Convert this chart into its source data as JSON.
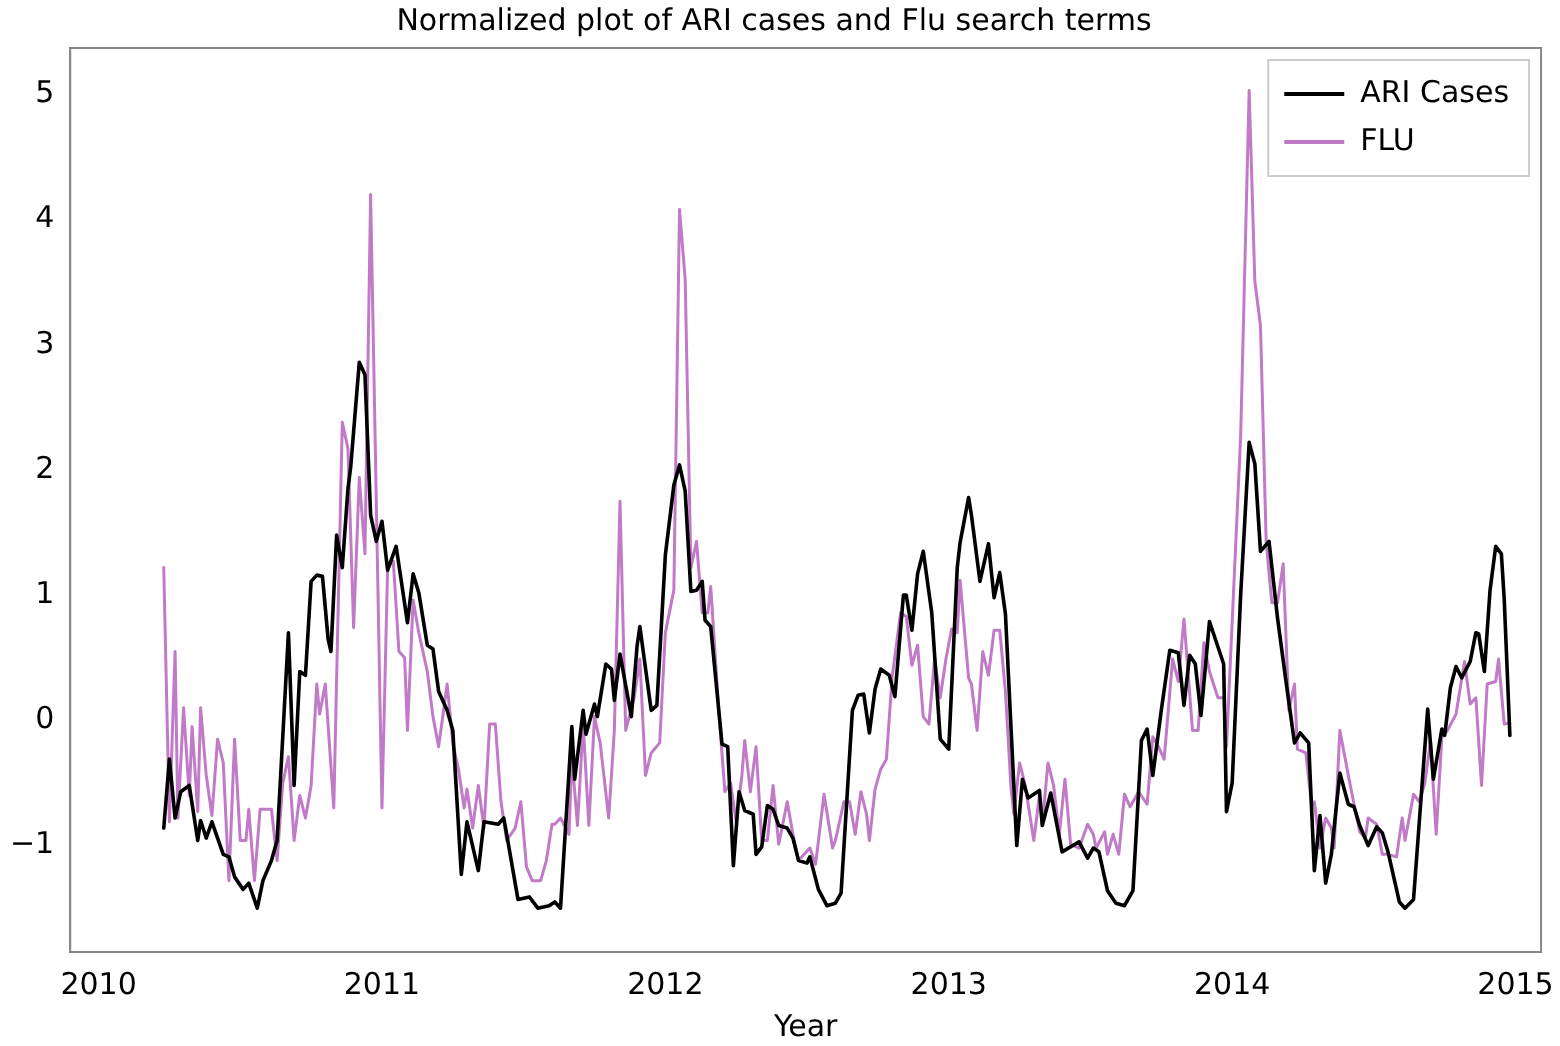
{
  "chart_data": {
    "type": "line",
    "title": "Normalized plot of ARI cases and Flu search terms",
    "xlabel": "Year",
    "xlim": [
      2009.9,
      2015.09
    ],
    "xticks": [
      2010,
      2011,
      2012,
      2013,
      2014,
      2015
    ],
    "ylim": [
      -1.85,
      5.37
    ],
    "yticks": [
      -1,
      0,
      1,
      2,
      3,
      4,
      5
    ],
    "grid": false,
    "legend": "top right",
    "marker": "none",
    "line_style": "solid",
    "series": [
      {
        "name": "ARI Cases",
        "color": "#000000",
        "x": [
          2010.23,
          2010.25,
          2010.27,
          2010.29,
          2010.32,
          2010.35,
          2010.36,
          2010.38,
          2010.4,
          2010.44,
          2010.46,
          2010.48,
          2010.51,
          2010.53,
          2010.56,
          2010.58,
          2010.61,
          2010.63,
          2010.67,
          2010.69,
          2010.71,
          2010.73,
          2010.75,
          2010.77,
          2010.79,
          2010.81,
          2010.82,
          2010.84,
          2010.86,
          2010.88,
          2010.89,
          2010.92,
          2010.94,
          2010.96,
          2010.98,
          2011.0,
          2011.02,
          2011.05,
          2011.09,
          2011.11,
          2011.13,
          2011.16,
          2011.18,
          2011.2,
          2011.23,
          2011.25,
          2011.28,
          2011.3,
          2011.34,
          2011.36,
          2011.41,
          2011.43,
          2011.48,
          2011.52,
          2011.55,
          2011.59,
          2011.61,
          2011.63,
          2011.67,
          2011.68,
          2011.71,
          2011.72,
          2011.75,
          2011.76,
          2011.79,
          2011.81,
          2011.82,
          2011.84,
          2011.88,
          2011.9,
          2011.91,
          2011.95,
          2011.97,
          2012.0,
          2012.03,
          2012.05,
          2012.07,
          2012.09,
          2012.11,
          2012.13,
          2012.14,
          2012.16,
          2012.2,
          2012.22,
          2012.24,
          2012.26,
          2012.28,
          2012.31,
          2012.32,
          2012.34,
          2012.36,
          2012.38,
          2012.4,
          2012.43,
          2012.45,
          2012.47,
          2012.5,
          2012.51,
          2012.54,
          2012.57,
          2012.6,
          2012.62,
          2012.66,
          2012.68,
          2012.7,
          2012.72,
          2012.74,
          2012.76,
          2012.79,
          2012.81,
          2012.84,
          2012.85,
          2012.87,
          2012.89,
          2012.91,
          2012.94,
          2012.97,
          2013.0,
          2013.03,
          2013.04,
          2013.07,
          2013.08,
          2013.11,
          2013.14,
          2013.16,
          2013.18,
          2013.2,
          2013.24,
          2013.26,
          2013.28,
          2013.32,
          2013.33,
          2013.36,
          2013.4,
          2013.46,
          2013.49,
          2013.51,
          2013.53,
          2013.56,
          2013.59,
          2013.62,
          2013.65,
          2013.68,
          2013.7,
          2013.72,
          2013.75,
          2013.78,
          2013.81,
          2013.83,
          2013.85,
          2013.87,
          2013.89,
          2013.92,
          2013.97,
          2013.98,
          2014.0,
          2014.03,
          2014.06,
          2014.08,
          2014.1,
          2014.13,
          2014.16,
          2014.19,
          2014.22,
          2014.24,
          2014.27,
          2014.29,
          2014.31,
          2014.33,
          2014.35,
          2014.38,
          2014.41,
          2014.43,
          2014.45,
          2014.48,
          2014.51,
          2014.53,
          2014.55,
          2014.59,
          2014.61,
          2014.64,
          2014.69,
          2014.71,
          2014.74,
          2014.75,
          2014.77,
          2014.79,
          2014.81,
          2014.84,
          2014.86,
          2014.87,
          2014.89,
          2014.91,
          2014.93,
          2014.95,
          2014.96,
          2014.98
        ],
        "values": [
          -0.86,
          -0.31,
          -0.78,
          -0.57,
          -0.52,
          -0.96,
          -0.8,
          -0.94,
          -0.81,
          -1.07,
          -1.09,
          -1.25,
          -1.35,
          -1.3,
          -1.5,
          -1.28,
          -1.12,
          -0.96,
          0.7,
          -0.52,
          0.39,
          0.36,
          1.11,
          1.16,
          1.15,
          0.65,
          0.55,
          1.48,
          1.22,
          1.85,
          2.03,
          2.86,
          2.76,
          1.64,
          1.43,
          1.59,
          1.2,
          1.39,
          0.78,
          1.17,
          1.02,
          0.6,
          0.57,
          0.23,
          0.08,
          -0.08,
          -1.23,
          -0.81,
          -1.2,
          -0.81,
          -0.83,
          -0.78,
          -1.43,
          -1.41,
          -1.5,
          -1.48,
          -1.45,
          -1.5,
          -0.05,
          -0.47,
          0.08,
          -0.11,
          0.13,
          0.03,
          0.45,
          0.41,
          0.16,
          0.53,
          0.03,
          0.59,
          0.75,
          0.08,
          0.12,
          1.32,
          1.88,
          2.04,
          1.83,
          1.03,
          1.04,
          1.11,
          0.8,
          0.75,
          -0.19,
          -0.21,
          -1.16,
          -0.57,
          -0.72,
          -0.75,
          -1.07,
          -1.01,
          -0.68,
          -0.71,
          -0.84,
          -0.86,
          -0.94,
          -1.12,
          -1.14,
          -1.09,
          -1.35,
          -1.48,
          -1.46,
          -1.38,
          0.08,
          0.2,
          0.21,
          -0.1,
          0.25,
          0.41,
          0.36,
          0.19,
          1.0,
          1.0,
          0.72,
          1.17,
          1.35,
          0.86,
          -0.15,
          -0.23,
          1.22,
          1.42,
          1.78,
          1.64,
          1.11,
          1.41,
          0.98,
          1.18,
          0.85,
          -1.0,
          -0.47,
          -0.62,
          -0.56,
          -0.84,
          -0.58,
          -1.05,
          -0.97,
          -1.1,
          -1.02,
          -1.05,
          -1.36,
          -1.46,
          -1.48,
          -1.36,
          -0.16,
          -0.07,
          -0.44,
          0.08,
          0.56,
          0.54,
          0.12,
          0.52,
          0.45,
          0.04,
          0.79,
          0.45,
          -0.73,
          -0.5,
          1.0,
          2.22,
          2.05,
          1.35,
          1.43,
          0.82,
          0.31,
          -0.18,
          -0.1,
          -0.18,
          -1.2,
          -0.76,
          -1.3,
          -1.07,
          -0.42,
          -0.67,
          -0.69,
          -0.84,
          -1.0,
          -0.85,
          -0.9,
          -1.05,
          -1.45,
          -1.5,
          -1.43,
          0.09,
          -0.47,
          -0.07,
          -0.12,
          0.26,
          0.43,
          0.34,
          0.47,
          0.7,
          0.69,
          0.39,
          1.04,
          1.39,
          1.33,
          0.97,
          -0.12
        ]
      },
      {
        "name": "FLU",
        "color": "#c17ac7",
        "x": [
          2010.23,
          2010.25,
          2010.27,
          2010.28,
          2010.3,
          2010.32,
          2010.33,
          2010.35,
          2010.36,
          2010.38,
          2010.4,
          2010.42,
          2010.44,
          2010.46,
          2010.48,
          2010.5,
          2010.52,
          2010.53,
          2010.55,
          2010.57,
          2010.61,
          2010.63,
          2010.65,
          2010.67,
          2010.69,
          2010.71,
          2010.73,
          2010.75,
          2010.77,
          2010.78,
          2010.8,
          2010.83,
          2010.86,
          2010.88,
          2010.9,
          2010.92,
          2010.94,
          2010.96,
          2011.0,
          2011.02,
          2011.04,
          2011.06,
          2011.08,
          2011.09,
          2011.11,
          2011.13,
          2011.16,
          2011.18,
          2011.2,
          2011.23,
          2011.25,
          2011.27,
          2011.29,
          2011.3,
          2011.32,
          2011.34,
          2011.36,
          2011.38,
          2011.4,
          2011.42,
          2011.44,
          2011.47,
          2011.49,
          2011.51,
          2011.53,
          2011.56,
          2011.58,
          2011.6,
          2011.61,
          2011.63,
          2011.66,
          2011.67,
          2011.69,
          2011.71,
          2011.73,
          2011.75,
          2011.77,
          2011.8,
          2011.82,
          2011.84,
          2011.86,
          2011.89,
          2011.91,
          2011.93,
          2011.95,
          2011.98,
          2012.0,
          2012.03,
          2012.05,
          2012.07,
          2012.09,
          2012.11,
          2012.13,
          2012.15,
          2012.16,
          2012.19,
          2012.21,
          2012.23,
          2012.25,
          2012.27,
          2012.28,
          2012.3,
          2012.32,
          2012.34,
          2012.36,
          2012.38,
          2012.4,
          2012.43,
          2012.45,
          2012.47,
          2012.51,
          2012.53,
          2012.56,
          2012.59,
          2012.6,
          2012.63,
          2012.65,
          2012.67,
          2012.69,
          2012.71,
          2012.72,
          2012.74,
          2012.76,
          2012.78,
          2012.8,
          2012.83,
          2012.85,
          2012.87,
          2012.89,
          2012.91,
          2012.93,
          2012.95,
          2012.97,
          2012.99,
          2013.01,
          2013.03,
          2013.04,
          2013.07,
          2013.08,
          2013.1,
          2013.12,
          2013.14,
          2013.16,
          2013.18,
          2013.2,
          2013.22,
          2013.23,
          2013.25,
          2013.27,
          2013.3,
          2013.32,
          2013.33,
          2013.35,
          2013.37,
          2013.39,
          2013.41,
          2013.43,
          2013.46,
          2013.49,
          2013.51,
          2013.52,
          2013.55,
          2013.56,
          2013.58,
          2013.6,
          2013.62,
          2013.64,
          2013.67,
          2013.7,
          2013.72,
          2013.74,
          2013.76,
          2013.79,
          2013.81,
          2013.83,
          2013.86,
          2013.88,
          2013.9,
          2013.92,
          2013.95,
          2013.97,
          2013.98,
          2014.03,
          2014.06,
          2014.08,
          2014.1,
          2014.12,
          2014.14,
          2014.16,
          2014.18,
          2014.2,
          2014.22,
          2014.23,
          2014.26,
          2014.28,
          2014.29,
          2014.31,
          2014.33,
          2014.35,
          2014.36,
          2014.38,
          2014.41,
          2014.43,
          2014.45,
          2014.47,
          2014.48,
          2014.51,
          2014.53,
          2014.55,
          2014.58,
          2014.6,
          2014.61,
          2014.64,
          2014.66,
          2014.68,
          2014.7,
          2014.72,
          2014.74,
          2014.76,
          2014.79,
          2014.82,
          2014.84,
          2014.86,
          2014.88,
          2014.9,
          2014.93,
          2014.94,
          2014.96,
          2014.98
        ],
        "values": [
          1.22,
          -0.81,
          0.55,
          -0.78,
          0.1,
          -0.6,
          -0.05,
          -0.73,
          0.1,
          -0.44,
          -0.76,
          -0.15,
          -0.34,
          -1.28,
          -0.15,
          -0.96,
          -0.96,
          -0.71,
          -1.28,
          -0.71,
          -0.71,
          -1.12,
          -0.5,
          -0.29,
          -0.96,
          -0.6,
          -0.78,
          -0.52,
          0.29,
          0.05,
          0.29,
          -0.7,
          2.38,
          2.17,
          0.74,
          1.94,
          1.33,
          4.2,
          -0.7,
          1.22,
          1.27,
          0.55,
          0.5,
          -0.08,
          0.96,
          0.7,
          0.39,
          0.03,
          -0.21,
          0.29,
          -0.18,
          -0.39,
          -0.7,
          -0.55,
          -0.86,
          -0.52,
          -0.86,
          -0.03,
          -0.03,
          -0.65,
          -0.96,
          -0.86,
          -0.65,
          -1.17,
          -1.28,
          -1.28,
          -1.12,
          -0.83,
          -0.83,
          -0.78,
          -0.91,
          -0.29,
          -0.84,
          -0.03,
          -0.84,
          0.03,
          -0.18,
          -0.78,
          -0.08,
          1.75,
          -0.08,
          0.18,
          0.49,
          -0.44,
          -0.26,
          -0.18,
          0.7,
          1.04,
          4.08,
          3.52,
          1.22,
          1.43,
          0.86,
          0.86,
          1.07,
          0.03,
          -0.57,
          -0.5,
          -0.81,
          -0.44,
          -0.16,
          -0.57,
          -0.21,
          -0.96,
          -0.96,
          -0.52,
          -0.99,
          -0.65,
          -0.91,
          -1.12,
          -1.02,
          -1.15,
          -0.59,
          -1.02,
          -0.96,
          -0.65,
          -0.65,
          -0.91,
          -0.57,
          -0.75,
          -0.96,
          -0.55,
          -0.39,
          -0.31,
          0.34,
          0.86,
          0.83,
          0.44,
          0.6,
          0.03,
          -0.03,
          0.49,
          0.18,
          0.49,
          0.73,
          0.7,
          1.12,
          0.34,
          0.29,
          -0.08,
          0.55,
          0.36,
          0.72,
          0.72,
          0.23,
          -0.55,
          -0.75,
          -0.34,
          -0.52,
          -0.96,
          -0.6,
          -0.83,
          -0.34,
          -0.52,
          -0.91,
          -0.47,
          -0.99,
          -1.02,
          -0.83,
          -0.91,
          -1.02,
          -0.89,
          -1.07,
          -0.91,
          -1.07,
          -0.59,
          -0.69,
          -0.57,
          -0.67,
          -0.13,
          -0.21,
          -0.31,
          0.49,
          0.31,
          0.81,
          -0.08,
          -0.08,
          0.62,
          0.39,
          0.18,
          0.18,
          -0.21,
          2.27,
          5.03,
          3.51,
          3.15,
          1.43,
          0.94,
          0.94,
          1.25,
          0.08,
          0.29,
          -0.23,
          -0.26,
          -0.67,
          -0.65,
          -1.02,
          -0.78,
          -0.86,
          -1.02,
          -0.08,
          -0.44,
          -0.67,
          -0.89,
          -0.94,
          -0.78,
          -0.83,
          -1.07,
          -1.07,
          -1.09,
          -0.78,
          -0.96,
          -0.59,
          -0.65,
          -0.5,
          -0.16,
          -0.91,
          -0.13,
          -0.08,
          0.05,
          0.47,
          0.13,
          0.18,
          -0.52,
          0.29,
          0.31,
          0.49,
          -0.03,
          -0.02
        ]
      }
    ]
  }
}
